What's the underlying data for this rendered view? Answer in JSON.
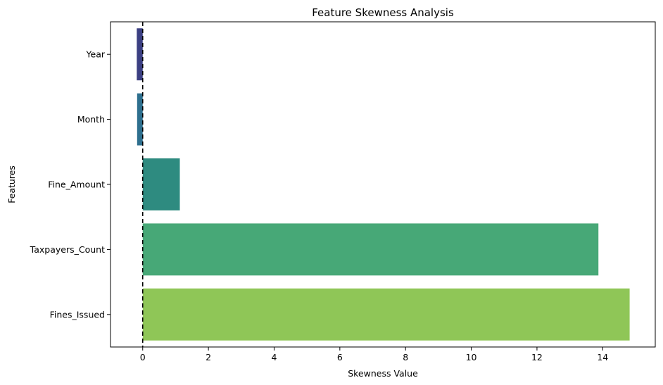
{
  "chart_data": {
    "type": "bar",
    "orientation": "horizontal",
    "title": "Feature Skewness Analysis",
    "xlabel": "Skewness Value",
    "ylabel": "Features",
    "categories": [
      "Year",
      "Month",
      "Fine_Amount",
      "Taxpayers_Count",
      "Fines_Issued"
    ],
    "values": [
      -0.18,
      -0.17,
      1.13,
      13.87,
      14.82
    ],
    "colors": [
      "#3b3f82",
      "#2e6f8e",
      "#2e8b80",
      "#47a877",
      "#8fc657"
    ],
    "xlim": [
      -0.98,
      15.6
    ],
    "xticks": [
      0,
      2,
      4,
      6,
      8,
      10,
      12,
      14
    ],
    "reference_line": {
      "x": 0,
      "style": "dashed",
      "color": "#000000"
    },
    "grid": false
  }
}
